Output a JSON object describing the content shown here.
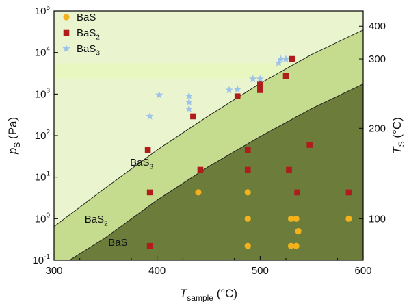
{
  "chart_data": {
    "type": "scatter",
    "x_axis": {
      "label_main": "T",
      "label_sub": "sample",
      "unit": "(°C)",
      "range": [
        300,
        600
      ],
      "ticks": [
        300,
        400,
        500,
        600
      ],
      "tick_labels": [
        "300",
        "400",
        "500",
        "600"
      ]
    },
    "y_axis": {
      "label_main": "p",
      "label_sub": "S",
      "unit": "(Pa)",
      "scale": "log",
      "range": [
        0.1,
        100000
      ],
      "ticks": [
        0.1,
        1,
        10,
        100,
        1000,
        10000,
        100000
      ],
      "tick_labels": [
        {
          "base": "10",
          "exp": "-1"
        },
        {
          "base": "10",
          "exp": "0"
        },
        {
          "base": "10",
          "exp": "1"
        },
        {
          "base": "10",
          "exp": "2"
        },
        {
          "base": "10",
          "exp": "3"
        },
        {
          "base": "10",
          "exp": "4"
        },
        {
          "base": "10",
          "exp": "5"
        }
      ]
    },
    "y2_axis": {
      "label_main": "T",
      "label_sub": "S",
      "unit": "(°C)",
      "ticks": [
        {
          "label": "100",
          "pS": 1.0
        },
        {
          "label": "200",
          "pS": 150
        },
        {
          "label": "300",
          "pS": 7000
        },
        {
          "label": "400",
          "pS": 43000
        }
      ]
    },
    "boundaries": [
      {
        "name": "BaS3/BaS2",
        "x": [
          300,
          350,
          400,
          450,
          500,
          550,
          600
        ],
        "y": [
          0.65,
          5.5,
          45,
          300,
          1800,
          9000,
          35000
        ]
      },
      {
        "name": "BaS2/BaS",
        "x": [
          315,
          350,
          400,
          450,
          500,
          550,
          600
        ],
        "y": [
          0.1,
          0.35,
          2.8,
          18,
          95,
          450,
          1750
        ]
      }
    ],
    "regions": [
      {
        "label": "BaS",
        "sub": "3",
        "x": 385,
        "y": 19,
        "color": "#eaf5cf"
      },
      {
        "label": "BaS",
        "sub": "2",
        "x": 341,
        "y": 0.8,
        "color": "#c5dc8f"
      },
      {
        "label": "BaS",
        "sub": "",
        "x": 362,
        "y": 0.22,
        "color": "#6b7c3b"
      }
    ],
    "highlight_band": {
      "y": [
        2400,
        5500
      ],
      "color": "#e7f7bf"
    },
    "legend": {
      "position": "top-left",
      "entries": [
        {
          "label": "BaS",
          "sub": "",
          "marker": "circle",
          "color": "#f3b21c"
        },
        {
          "label": "BaS",
          "sub": "2",
          "marker": "square",
          "color": "#b01c1c"
        },
        {
          "label": "BaS",
          "sub": "3",
          "marker": "star",
          "color": "#9ec3ea"
        }
      ]
    },
    "series": [
      {
        "name": "BaS",
        "marker": "circle",
        "color": "#f3b21c",
        "points": [
          [
            440,
            4.3
          ],
          [
            488,
            4.3
          ],
          [
            488,
            1.0
          ],
          [
            488,
            0.22
          ],
          [
            530,
            1.0
          ],
          [
            535,
            1.0
          ],
          [
            530,
            0.22
          ],
          [
            535,
            0.22
          ],
          [
            537,
            0.5
          ],
          [
            586,
            1.0
          ]
        ]
      },
      {
        "name": "BaS2",
        "marker": "square",
        "color": "#b01c1c",
        "points": [
          [
            391,
            45
          ],
          [
            393,
            4.3
          ],
          [
            393,
            0.22
          ],
          [
            435,
            290
          ],
          [
            442,
            15
          ],
          [
            478,
            880
          ],
          [
            488,
            45
          ],
          [
            488,
            15
          ],
          [
            500,
            1700
          ],
          [
            500,
            1250
          ],
          [
            525,
            2700
          ],
          [
            531,
            7000
          ],
          [
            528,
            15
          ],
          [
            536,
            4.3
          ],
          [
            548,
            60
          ],
          [
            586,
            4.3
          ]
        ]
      },
      {
        "name": "BaS3",
        "marker": "star",
        "color": "#9ec3ea",
        "points": [
          [
            393,
            290
          ],
          [
            402,
            950
          ],
          [
            431,
            900
          ],
          [
            431,
            640
          ],
          [
            431,
            440
          ],
          [
            470,
            1250
          ],
          [
            478,
            1300
          ],
          [
            493,
            2300
          ],
          [
            500,
            2300
          ],
          [
            518,
            5600
          ],
          [
            520,
            6900
          ],
          [
            525,
            6900
          ]
        ]
      }
    ]
  }
}
